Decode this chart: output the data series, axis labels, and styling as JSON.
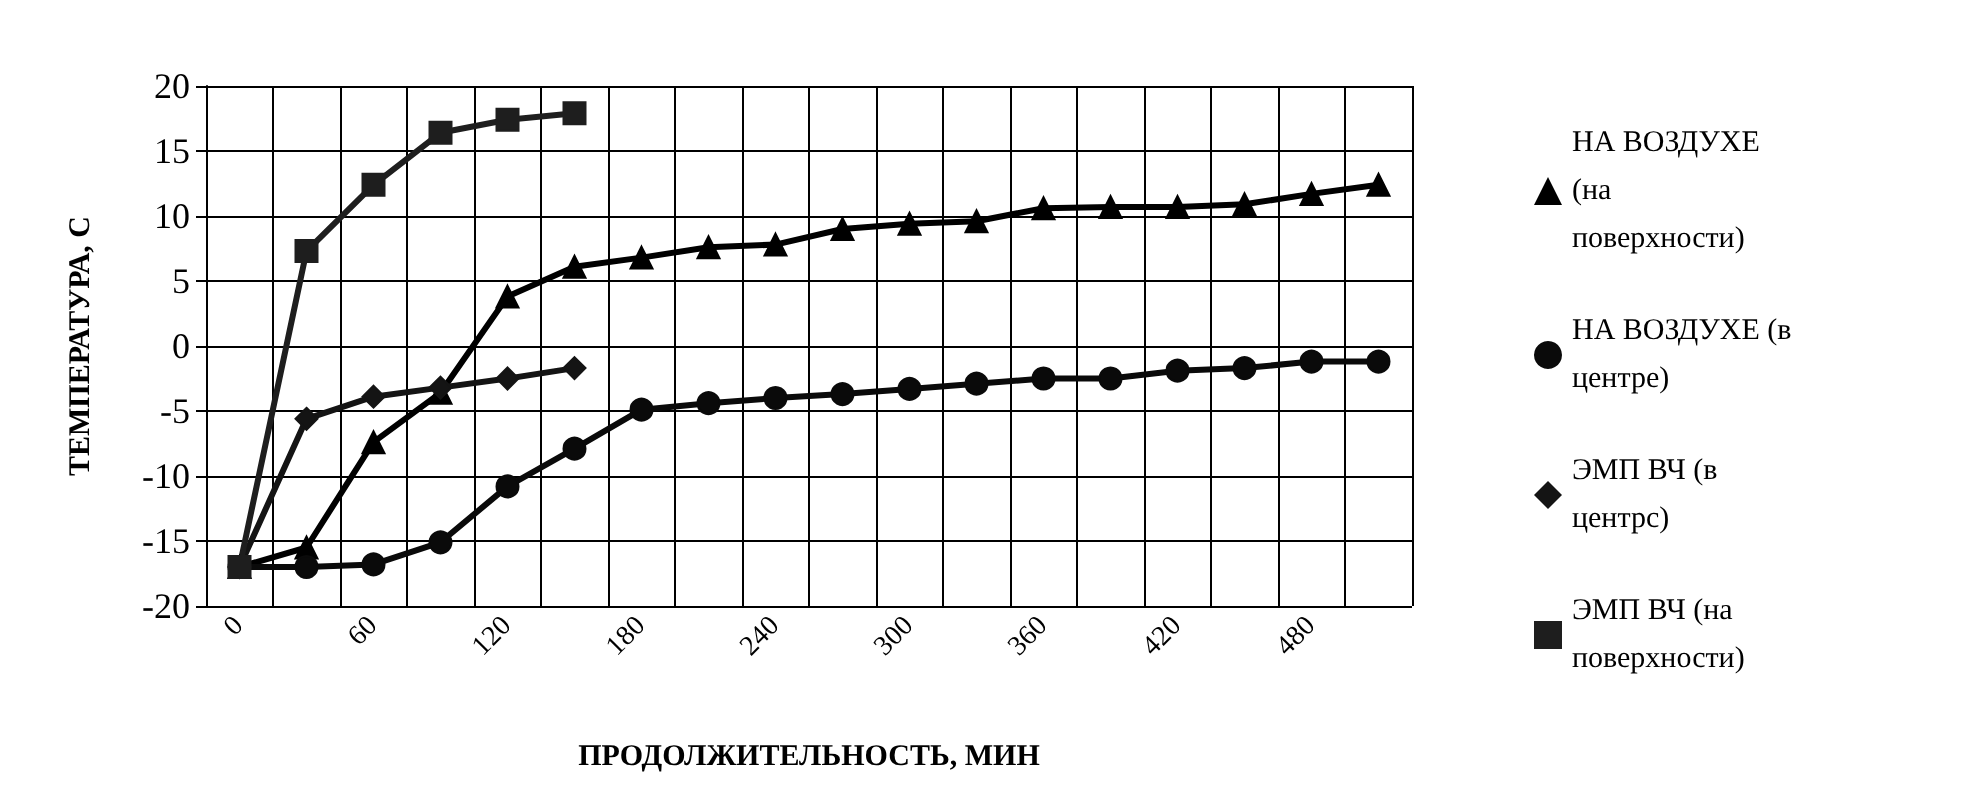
{
  "chart_data": {
    "type": "line",
    "xlabel": "ПРОДОЛЖИТЕЛЬНОСТЬ, МИН",
    "ylabel": "ТЕМПЕРАТУРА, С",
    "categories": [
      "0",
      null,
      "60",
      null,
      "120",
      null,
      "180",
      null,
      "240",
      null,
      "300",
      null,
      "360",
      null,
      "420",
      null,
      "480",
      null
    ],
    "series": [
      {
        "name": "НА ВОЗДУХЕ (на поверхности)",
        "color": "#000000",
        "marker": "triangle",
        "values": [
          -17,
          -15.5,
          -7.4,
          -3.6,
          3.8,
          6.1,
          6.8,
          7.6,
          7.8,
          9.0,
          9.4,
          9.6,
          10.6,
          10.7,
          10.7,
          10.9,
          11.7,
          12.4
        ]
      },
      {
        "name": "НА ВОЗДУХЕ (в центре)",
        "color": "#0a0a0a",
        "marker": "circle",
        "values": [
          -17,
          -17,
          -16.8,
          -15.1,
          -10.8,
          -7.9,
          -4.9,
          -4.4,
          -4.0,
          -3.7,
          -3.3,
          -2.9,
          -2.5,
          -2.5,
          -1.9,
          -1.7,
          -1.2,
          -1.2
        ]
      },
      {
        "name": "ЭМП ВЧ (в центрс)",
        "color": "#141414",
        "marker": "diamond",
        "values": [
          -17,
          -5.6,
          -3.9,
          -3.2,
          -2.5,
          -1.7,
          null,
          null,
          null,
          null,
          null,
          null,
          null,
          null,
          null,
          null,
          null,
          null
        ]
      },
      {
        "name": "ЭМП ВЧ (на поверхности)",
        "color": "#1e1e1e",
        "marker": "square",
        "values": [
          -17,
          7.3,
          12.4,
          16.4,
          17.4,
          17.9,
          null,
          null,
          null,
          null,
          null,
          null,
          null,
          null,
          null,
          null,
          null,
          null
        ]
      }
    ],
    "ylim": [
      -20,
      20
    ],
    "yticks": [
      -20,
      -15,
      -10,
      -5,
      0,
      5,
      10,
      15,
      20
    ],
    "grid": true,
    "legend": "right"
  }
}
